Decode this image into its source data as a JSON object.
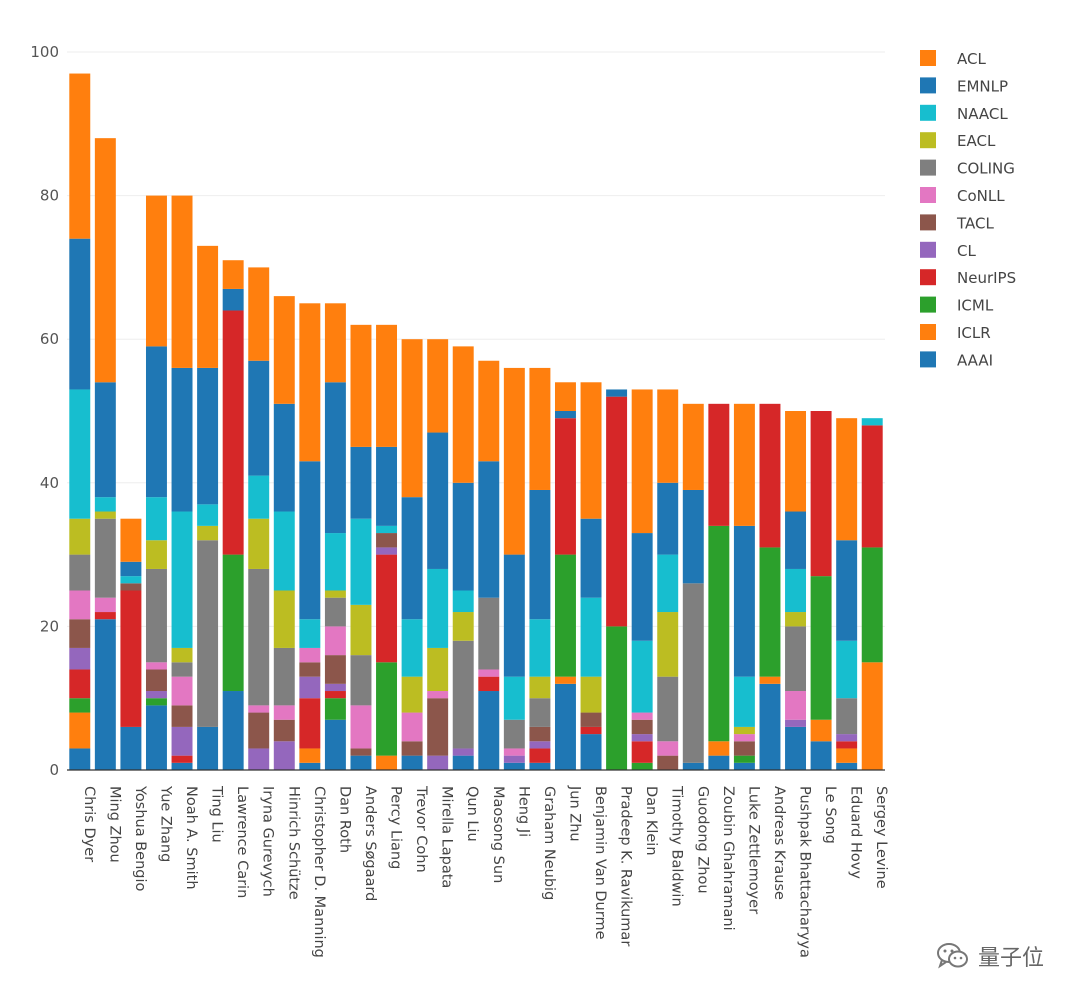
{
  "watermark": {
    "text": "量子位",
    "icon": "wechat-icon"
  },
  "chart_data": {
    "type": "bar",
    "stacked": true,
    "orientation": "vertical",
    "ylim": [
      0,
      100
    ],
    "yticks": [
      0,
      20,
      40,
      60,
      80,
      100
    ],
    "grid": true,
    "legend_position": "top-right",
    "categories": [
      "Chris Dyer",
      "Ming Zhou",
      "Yoshua Bengio",
      "Yue Zhang",
      "Noah A. Smith",
      "Ting Liu",
      "Lawrence Carin",
      "Iryna Gurevych",
      "Hinrich Schütze",
      "Christopher D. Manning",
      "Dan Roth",
      "Anders Søgaard",
      "Percy Liang",
      "Trevor Cohn",
      "Mirella Lapata",
      "Qun Liu",
      "Maosong Sun",
      "Heng Ji",
      "Graham Neubig",
      "Jun Zhu",
      "Benjamin Van Durme",
      "Pradeep K. Ravikumar",
      "Dan Klein",
      "Timothy Baldwin",
      "Guodong Zhou",
      "Zoubin Ghahramani",
      "Luke Zettlemoyer",
      "Andreas Krause",
      "Pushpak Bhattacharyya",
      "Le Song",
      "Eduard Hovy",
      "Sergey Levine"
    ],
    "series": [
      {
        "name": "AAAI",
        "color": "#1f77b4",
        "values": [
          3,
          21,
          6,
          9,
          1,
          6,
          11,
          0,
          0,
          1,
          7,
          2,
          0,
          2,
          0,
          2,
          11,
          1,
          1,
          12,
          5,
          0,
          0,
          0,
          1,
          2,
          1,
          12,
          6,
          4,
          1,
          0
        ]
      },
      {
        "name": "ICLR",
        "color": "#ff7f0e",
        "values": [
          5,
          0,
          0,
          0,
          0,
          0,
          0,
          0,
          0,
          2,
          0,
          0,
          2,
          0,
          0,
          0,
          0,
          0,
          0,
          1,
          0,
          0,
          0,
          0,
          0,
          2,
          0,
          1,
          0,
          3,
          2,
          15
        ]
      },
      {
        "name": "ICML",
        "color": "#2ca02c",
        "values": [
          2,
          0,
          0,
          1,
          0,
          0,
          19,
          0,
          0,
          0,
          3,
          0,
          13,
          0,
          0,
          0,
          0,
          0,
          0,
          17,
          0,
          20,
          1,
          0,
          0,
          30,
          1,
          18,
          0,
          20,
          0,
          16
        ]
      },
      {
        "name": "NeurIPS",
        "color": "#d62728",
        "values": [
          4,
          1,
          19,
          0,
          1,
          0,
          34,
          0,
          0,
          7,
          1,
          0,
          15,
          0,
          0,
          0,
          2,
          0,
          2,
          19,
          1,
          32,
          3,
          0,
          0,
          17,
          0,
          20,
          0,
          23,
          1,
          17
        ]
      },
      {
        "name": "CL",
        "color": "#9467bd",
        "values": [
          3,
          0,
          0,
          1,
          4,
          0,
          0,
          3,
          4,
          3,
          1,
          0,
          1,
          0,
          2,
          1,
          0,
          1,
          1,
          0,
          0,
          0,
          1,
          0,
          0,
          0,
          0,
          0,
          1,
          0,
          1,
          0
        ]
      },
      {
        "name": "TACL",
        "color": "#8c564b",
        "values": [
          4,
          0,
          1,
          3,
          3,
          0,
          0,
          5,
          3,
          2,
          4,
          1,
          2,
          2,
          8,
          0,
          0,
          0,
          2,
          0,
          2,
          0,
          2,
          2,
          0,
          0,
          2,
          0,
          0,
          0,
          0,
          0
        ]
      },
      {
        "name": "CoNLL",
        "color": "#e377c2",
        "values": [
          4,
          2,
          0,
          1,
          4,
          0,
          0,
          1,
          2,
          2,
          4,
          6,
          0,
          4,
          1,
          0,
          1,
          1,
          0,
          0,
          0,
          0,
          1,
          2,
          0,
          0,
          1,
          0,
          4,
          0,
          0,
          0
        ]
      },
      {
        "name": "COLING",
        "color": "#7f7f7f",
        "values": [
          5,
          11,
          0,
          13,
          2,
          26,
          0,
          19,
          8,
          0,
          4,
          7,
          0,
          0,
          0,
          15,
          10,
          4,
          4,
          0,
          0,
          0,
          0,
          9,
          25,
          0,
          0,
          0,
          9,
          0,
          5,
          0
        ]
      },
      {
        "name": "EACL",
        "color": "#bcbd22",
        "values": [
          5,
          1,
          0,
          4,
          2,
          2,
          0,
          7,
          8,
          0,
          1,
          7,
          0,
          5,
          6,
          4,
          0,
          0,
          3,
          0,
          5,
          0,
          0,
          9,
          0,
          0,
          1,
          0,
          2,
          0,
          0,
          0
        ]
      },
      {
        "name": "NAACL",
        "color": "#17becf",
        "values": [
          18,
          2,
          1,
          6,
          19,
          3,
          0,
          6,
          11,
          4,
          8,
          12,
          1,
          8,
          11,
          3,
          0,
          6,
          8,
          0,
          11,
          0,
          10,
          8,
          0,
          0,
          7,
          0,
          6,
          0,
          8,
          1
        ]
      },
      {
        "name": "EMNLP",
        "color": "#1f77b4",
        "values": [
          21,
          16,
          2,
          21,
          20,
          19,
          3,
          16,
          15,
          22,
          21,
          10,
          11,
          17,
          19,
          15,
          19,
          17,
          18,
          1,
          11,
          1,
          15,
          10,
          13,
          0,
          21,
          0,
          8,
          0,
          14,
          0
        ]
      },
      {
        "name": "ACL",
        "color": "#ff7f0e",
        "values": [
          23,
          34,
          6,
          21,
          24,
          17,
          4,
          13,
          15,
          22,
          11,
          17,
          17,
          22,
          13,
          19,
          14,
          26,
          17,
          4,
          19,
          0,
          20,
          13,
          12,
          0,
          17,
          0,
          14,
          0,
          17,
          0
        ]
      }
    ],
    "legend_order": [
      "ACL",
      "EMNLP",
      "NAACL",
      "EACL",
      "COLING",
      "CoNLL",
      "TACL",
      "CL",
      "NeurIPS",
      "ICML",
      "ICLR",
      "AAAI"
    ]
  }
}
